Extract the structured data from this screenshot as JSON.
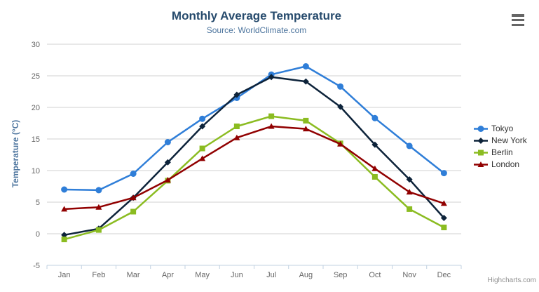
{
  "chart_data": {
    "type": "line",
    "title": "Monthly Average Temperature",
    "subtitle": "Source: WorldClimate.com",
    "xlabel": "",
    "ylabel": "Temperature (°C)",
    "categories": [
      "Jan",
      "Feb",
      "Mar",
      "Apr",
      "May",
      "Jun",
      "Jul",
      "Aug",
      "Sep",
      "Oct",
      "Nov",
      "Dec"
    ],
    "ylim": [
      -5,
      30
    ],
    "ytick_step": 5,
    "grid": true,
    "legend_position": "right",
    "series": [
      {
        "name": "Tokyo",
        "color": "#2f7ed8",
        "symbol": "circle",
        "values": [
          7.0,
          6.9,
          9.5,
          14.5,
          18.2,
          21.5,
          25.2,
          26.5,
          23.3,
          18.3,
          13.9,
          9.6
        ]
      },
      {
        "name": "New York",
        "color": "#0d233a",
        "symbol": "diamond",
        "values": [
          -0.2,
          0.8,
          5.7,
          11.3,
          17.0,
          22.0,
          24.8,
          24.1,
          20.1,
          14.1,
          8.6,
          2.5
        ]
      },
      {
        "name": "Berlin",
        "color": "#8bbc21",
        "symbol": "square",
        "values": [
          -0.9,
          0.6,
          3.5,
          8.4,
          13.5,
          17.0,
          18.6,
          17.9,
          14.3,
          9.0,
          3.9,
          1.0
        ]
      },
      {
        "name": "London",
        "color": "#910000",
        "symbol": "triangle",
        "values": [
          3.9,
          4.2,
          5.7,
          8.5,
          11.9,
          15.2,
          17.0,
          16.6,
          14.2,
          10.3,
          6.6,
          4.8
        ]
      }
    ]
  },
  "credits": "Highcharts.com",
  "colors": {
    "title": "#274b6d",
    "subtitle": "#4d759e",
    "axis_label": "#666666",
    "grid_line": "#d0d0d0",
    "axis_line": "#c0d0e0",
    "legend_text": "#333333",
    "credits": "#909090",
    "menu_icon": "#666666"
  }
}
